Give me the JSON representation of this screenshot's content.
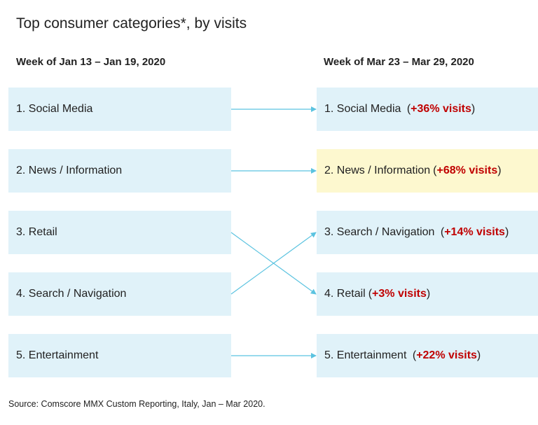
{
  "title": "Top consumer categories*, by visits",
  "left_header": "Week of Jan 13 – Jan 19, 2020",
  "right_header": "Week of Mar 23 – Mar 29, 2020",
  "left_items": [
    {
      "label": "1. Social Media"
    },
    {
      "label": "2. News / Information"
    },
    {
      "label": "3. Retail"
    },
    {
      "label": "4. Search / Navigation"
    },
    {
      "label": "5. Entertainment"
    }
  ],
  "right_items": [
    {
      "label": "1. Social Media",
      "open": "(",
      "change": "+36% visits",
      "close": ")"
    },
    {
      "label": "2. News / Information",
      "open": "(",
      "change": "+68% visits",
      "close": ")",
      "highlight": true
    },
    {
      "label": "3. Search / Navigation",
      "open": "(",
      "change": "+14% visits",
      "close": ")"
    },
    {
      "label": "4. Retail",
      "open": "(",
      "change": "+3% visits",
      "close": ")"
    },
    {
      "label": "5. Entertainment",
      "open": "(",
      "change": "+22% visits",
      "close": ")"
    }
  ],
  "colors": {
    "box": "#e0f2f9",
    "highlight_box": "#fdf8cf",
    "change_text": "#c00000",
    "arrow": "#5bc3e0"
  },
  "source": "Source: Comscore MMX Custom Reporting, Italy, Jan – Mar 2020."
}
